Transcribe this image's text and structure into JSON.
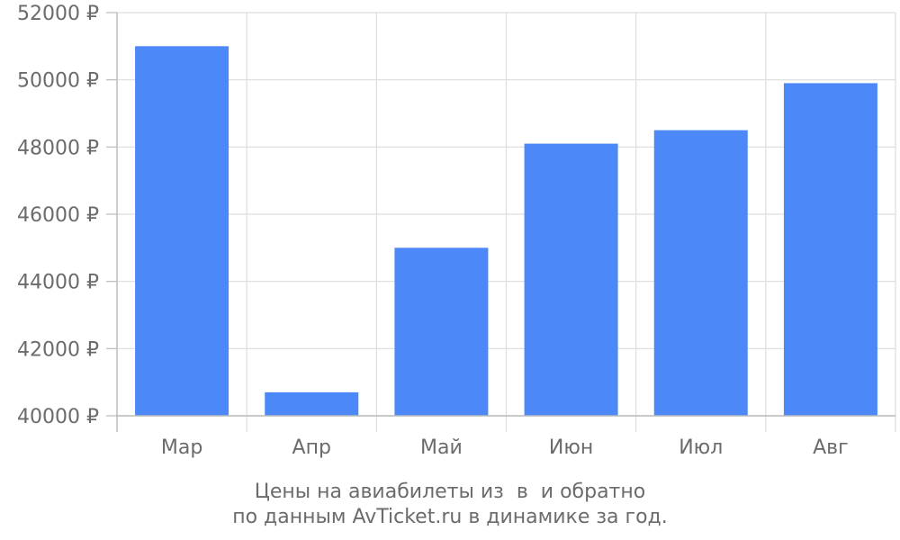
{
  "chart_data": {
    "type": "bar",
    "categories": [
      "Мар",
      "Апр",
      "Май",
      "Июн",
      "Июл",
      "Авг"
    ],
    "values": [
      51000,
      40700,
      45000,
      48100,
      48500,
      49900
    ],
    "ylim": [
      40000,
      52000
    ],
    "yticks": [
      40000,
      42000,
      44000,
      46000,
      48000,
      50000,
      52000
    ],
    "ytick_labels": [
      "40000 ₽",
      "42000 ₽",
      "44000 ₽",
      "46000 ₽",
      "48000 ₽",
      "50000 ₽",
      "52000 ₽"
    ],
    "grid": true,
    "bar_color": "#4d88f8",
    "grid_color": "#dddddd",
    "axis_color": "#bbbbbb",
    "caption_line_1": "Цены на авиабилеты из  в  и обратно",
    "caption_line_2": "по данным AvTicket.ru в динамике за год."
  }
}
